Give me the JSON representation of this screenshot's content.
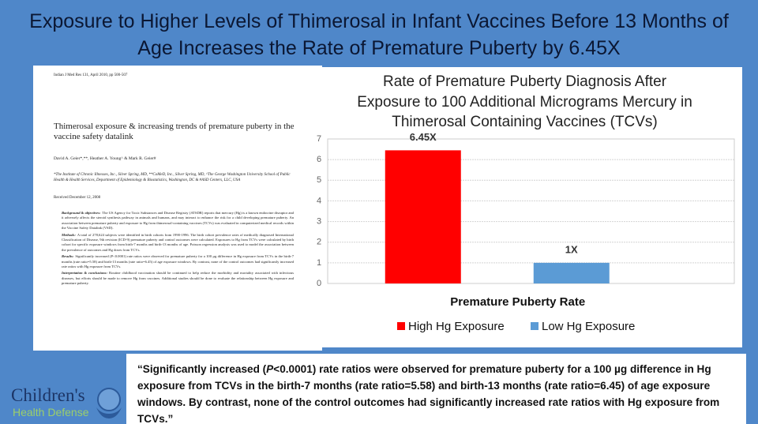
{
  "header": {
    "title": "Exposure to Higher Levels of Thimerosal in Infant Vaccines Before 13 Months of Age Increases the Rate of Premature Puberty by 6.45X"
  },
  "paper": {
    "citation": "Indian J Med Res 131, April 2010, pp 500-507",
    "title": "Thimerosal exposure & increasing trends of premature puberty in the vaccine safety datalink",
    "authors": "David A. Geier*,**, Heather A. Young^ & Mark R. Geier#",
    "affiliations": "*The Institute of Chronic Illnesses, Inc., Silver Spring, MD, **CoMeD, Inc., Silver Spring, MD, ^The George Washington University School of Public Health & Health Services, Department of Epidemiology & Biostatistics, Washington, DC & #ASD Centers, LLC, USA",
    "received": "Received December 12, 2008",
    "abstract": [
      {
        "label": "Background & objectives:",
        "text": "The US Agency for Toxic Substances and Disease Registry (ATSDR) reports that mercury (Hg) is a known endocrine disruptor and it adversely affects the steroid synthesis pathway in animals and humans, and may interact to enhance the risk for a child developing premature puberty. An association between premature puberty and exposure to Hg from thimerosal-containing vaccines (TCVs) was evaluated in computerized medical records within the Vaccine Safety Datalink (VSD)."
      },
      {
        "label": "Methods:",
        "text": "A total of 278,624 subjects were identified in birth cohorts from 1990-1996. The birth cohort prevalence rates of medically diagnosed International Classification of Disease, 9th revision (ICD-9) premature puberty and control outcomes were calculated. Exposures to Hg from TCVs were calculated by birth cohort for specific exposure windows from birth-7 months and birth-13 months of age. Poisson regression analysis was used to model the association between the prevalence of outcomes and Hg doses from TCVs."
      },
      {
        "label": "Results:",
        "text": "Significantly increased (P<0.0001) rate ratios were observed for premature puberty for a 100 µg difference in Hg exposure from TCVs in the birth-7 months (rate ratio=5.58) and birth-13 months (rate ratio=6.45) of age exposure windows. By contrast, none of the control outcomes had significantly increased rate ratios with Hg exposure from TCVs."
      },
      {
        "label": "Interpretation & conclusions:",
        "text": "Routine childhood vaccination should be continued to help reduce the morbidity and mortality associated with infectious diseases, but efforts should be made to remove Hg from vaccines. Additional studies should be done to evaluate the relationship between Hg exposure and premature puberty."
      }
    ]
  },
  "chart_data": {
    "type": "bar",
    "title": "Rate of Premature Puberty Diagnosis After Exposure to 100 Additional Micrograms Mercury in Thimerosal Containing Vaccines (TCVs)",
    "categories": [
      "Premature Puberty Rate"
    ],
    "series": [
      {
        "name": "High Hg Exposure",
        "color": "#ff0000",
        "values": [
          6.45
        ],
        "value_labels": [
          "6.45X"
        ]
      },
      {
        "name": "Low Hg Exposure",
        "color": "#5b9bd5",
        "values": [
          1
        ],
        "value_labels": [
          "1X"
        ]
      }
    ],
    "ylim": [
      0,
      7
    ],
    "yticks": [
      0,
      1,
      2,
      3,
      4,
      5,
      6,
      7
    ],
    "grid": true,
    "legend": "bottom"
  },
  "quote": {
    "parts": [
      "“Significantly increased (",
      "P",
      "<0.0001) rate ratios were observed for premature puberty for a 100 µg difference in Hg exposure from TCVs in the birth-7 months (rate ratio=5.58) and birth-13 months (rate ratio=6.45) of age exposure windows. By contrast, none of the control outcomes had significantly increased rate ratios with Hg exposure from TCVs.”"
    ]
  },
  "logo": {
    "line1": "Children's",
    "line2": "Health Defense"
  }
}
